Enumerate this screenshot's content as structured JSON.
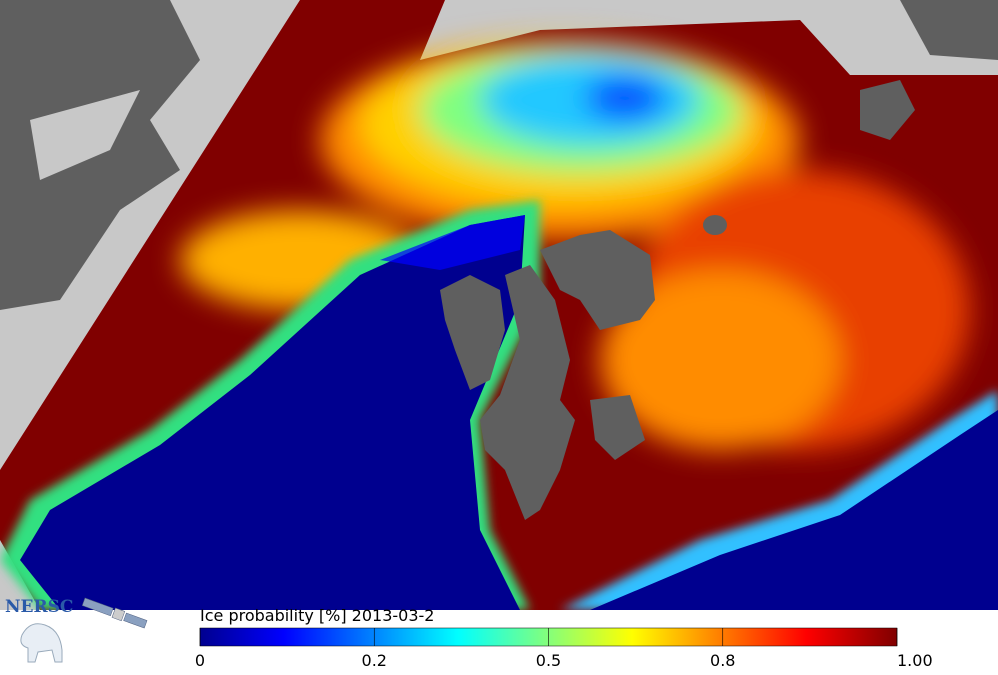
{
  "colorbar": {
    "label": "Ice probability [%] 2013-03-2",
    "ticks": [
      "0",
      "0.2",
      "0.5",
      "0.8",
      "1.00"
    ]
  },
  "logo": {
    "text": "NERSC"
  }
}
